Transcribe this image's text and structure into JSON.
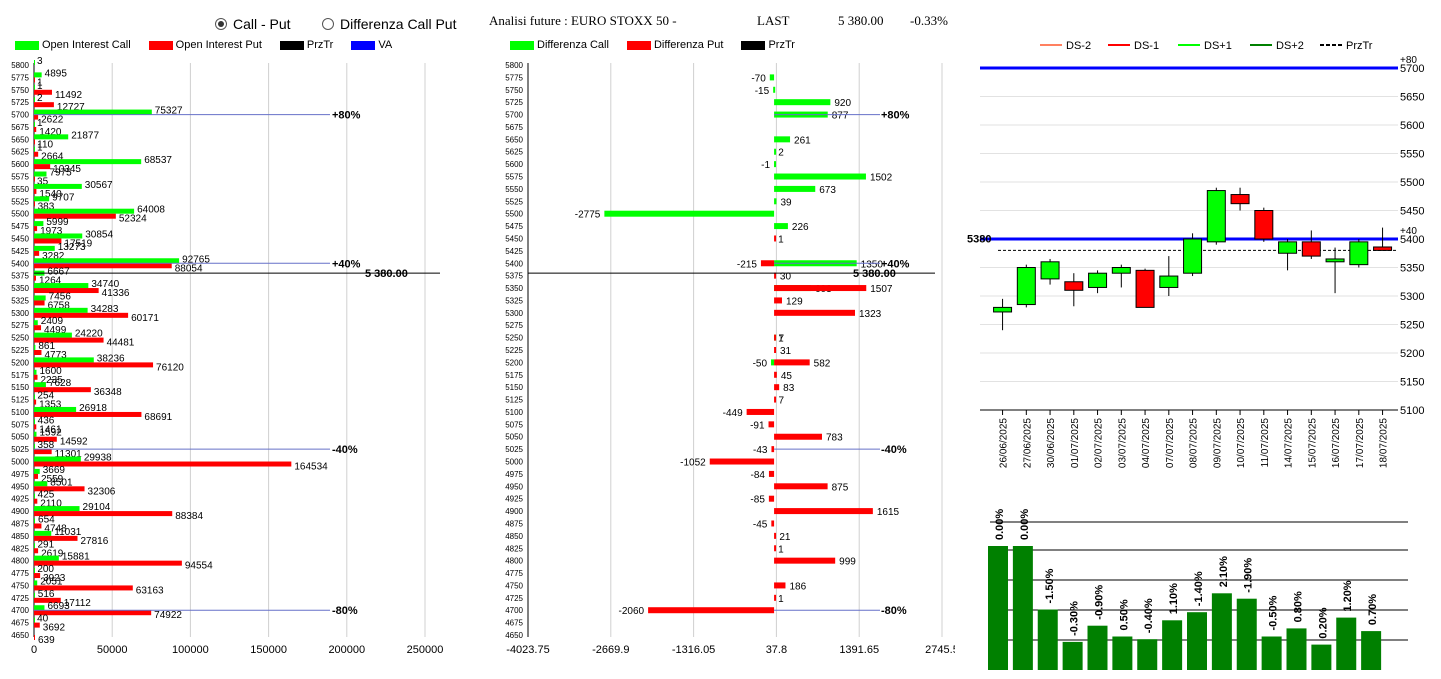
{
  "options": {
    "call_put": "Call - Put",
    "diff_call_put": "Differenza Call Put",
    "selected": "call_put"
  },
  "header": {
    "title": "Analisi future : EURO STOXX 50 -",
    "last_label": "LAST",
    "last_value": "5 380.00",
    "change": "-0.33%"
  },
  "colors": {
    "call": "#00ff00",
    "put": "#ff0000",
    "prztr": "#000000",
    "va": "#0000ff",
    "dsm2": "#ff8060",
    "dsm1": "#ff0000",
    "dsp1": "#00ff00",
    "dsp2": "#008000",
    "bar_green": "#008000"
  },
  "chart_data": [
    {
      "type": "bar",
      "orientation": "horizontal",
      "legend": [
        "Open Interest Call",
        "Open Interest Put",
        "PrzTr",
        "VA"
      ],
      "strikes": [
        5800,
        5775,
        5750,
        5725,
        5700,
        5675,
        5650,
        5625,
        5600,
        5575,
        5550,
        5525,
        5500,
        5475,
        5450,
        5425,
        5400,
        5375,
        5350,
        5325,
        5300,
        5275,
        5250,
        5225,
        5200,
        5175,
        5150,
        5125,
        5100,
        5075,
        5050,
        5025,
        5000,
        4975,
        4950,
        4925,
        4900,
        4875,
        4850,
        4825,
        4800,
        4775,
        4750,
        4725,
        4700,
        4675,
        4650
      ],
      "call_oi": [
        3,
        4895,
        1,
        2,
        75327,
        1,
        21877,
        1,
        68537,
        7975,
        30567,
        9707,
        64008,
        5999,
        30854,
        13273,
        92765,
        6667,
        34740,
        7456,
        34283,
        2409,
        24220,
        861,
        38236,
        1600,
        7628,
        254,
        26918,
        436,
        1592,
        358,
        29938,
        3669,
        8501,
        425,
        29104,
        654,
        11031,
        291,
        15881,
        200,
        2051,
        516,
        6693,
        40,
        0
      ],
      "put_oi": [
        0,
        1,
        11492,
        12727,
        2622,
        1420,
        110,
        2664,
        10345,
        35,
        1540,
        383,
        52324,
        1973,
        17519,
        3282,
        88054,
        1264,
        41336,
        6758,
        60171,
        4499,
        44481,
        4773,
        76120,
        2235,
        36348,
        1353,
        68691,
        1461,
        14592,
        11301,
        164534,
        2559,
        32306,
        2110,
        88384,
        4748,
        27816,
        2619,
        94554,
        3923,
        63163,
        17112,
        74922,
        3692,
        639
      ],
      "xticks": [
        "0",
        "50000",
        "100000",
        "150000",
        "200000",
        "250000"
      ],
      "xlim": [
        0,
        250000
      ],
      "markers": [
        {
          "strike": 5700,
          "label": "+80%"
        },
        {
          "strike": 5400,
          "label": "+40%"
        },
        {
          "strike": 5025,
          "label": "-40%"
        },
        {
          "strike": 4700,
          "label": "-80%"
        }
      ],
      "prztr_label": "5 380.00"
    },
    {
      "type": "bar",
      "orientation": "horizontal",
      "legend": [
        "Differenza Call",
        "Differenza Put",
        "PrzTr"
      ],
      "strikes": [
        5800,
        5775,
        5750,
        5725,
        5700,
        5675,
        5650,
        5625,
        5600,
        5575,
        5550,
        5525,
        5500,
        5475,
        5450,
        5425,
        5400,
        5375,
        5350,
        5325,
        5300,
        5275,
        5250,
        5225,
        5200,
        5175,
        5150,
        5125,
        5100,
        5075,
        5050,
        5025,
        5000,
        4975,
        4950,
        4925,
        4900,
        4875,
        4850,
        4825,
        4800,
        4775,
        4750,
        4725,
        4700,
        4675,
        4650
      ],
      "diff_call": [
        0,
        -70,
        -15,
        920,
        877,
        0,
        261,
        2,
        -1,
        1502,
        673,
        39,
        -2775,
        226,
        0,
        0,
        1350,
        0,
        603,
        0,
        0,
        0,
        1,
        0,
        -50,
        0,
        0,
        0,
        0,
        0,
        0,
        0,
        0,
        0,
        0,
        0,
        0,
        0,
        0,
        0,
        0,
        0,
        0,
        0,
        0,
        0,
        0
      ],
      "diff_put": [
        0,
        0,
        0,
        0,
        0,
        0,
        0,
        0,
        0,
        0,
        0,
        0,
        0,
        0,
        1,
        0,
        -215,
        30,
        1507,
        129,
        1323,
        0,
        7,
        31,
        582,
        45,
        83,
        7,
        -449,
        -91,
        783,
        -43,
        -1052,
        -84,
        875,
        -85,
        1615,
        -45,
        21,
        1,
        999,
        0,
        186,
        1,
        -2060,
        0,
        0
      ],
      "xticks": [
        "-4023.75",
        "-2669.9",
        "-1316.05",
        "37.8",
        "1391.65",
        "2745.5"
      ],
      "xlim": [
        -4023.75,
        2745.5
      ],
      "markers": [
        {
          "strike": 5700,
          "label": "+80%"
        },
        {
          "strike": 5400,
          "label": "+40%"
        },
        {
          "strike": 5025,
          "label": "-40%"
        },
        {
          "strike": 4700,
          "label": "-80%"
        }
      ],
      "prztr_label": "5 380.00"
    },
    {
      "type": "candlestick",
      "legend": [
        "DS-2",
        "DS-1",
        "DS+1",
        "DS+2",
        "PrzTr"
      ],
      "dates": [
        "26/06/2025",
        "27/06/2025",
        "30/06/2025",
        "01/07/2025",
        "02/07/2025",
        "03/07/2025",
        "04/07/2025",
        "07/07/2025",
        "08/07/2025",
        "09/07/2025",
        "10/07/2025",
        "11/07/2025",
        "14/07/2025",
        "15/07/2025",
        "16/07/2025",
        "17/07/2025",
        "18/07/2025"
      ],
      "candles": [
        {
          "o": 5272,
          "h": 5295,
          "l": 5240,
          "c": 5280
        },
        {
          "o": 5285,
          "h": 5355,
          "l": 5280,
          "c": 5350
        },
        {
          "o": 5330,
          "h": 5365,
          "l": 5320,
          "c": 5360
        },
        {
          "o": 5325,
          "h": 5340,
          "l": 5282,
          "c": 5310
        },
        {
          "o": 5315,
          "h": 5345,
          "l": 5305,
          "c": 5340
        },
        {
          "o": 5340,
          "h": 5355,
          "l": 5315,
          "c": 5350
        },
        {
          "o": 5345,
          "h": 5348,
          "l": 5280,
          "c": 5280
        },
        {
          "o": 5315,
          "h": 5370,
          "l": 5300,
          "c": 5335
        },
        {
          "o": 5340,
          "h": 5410,
          "l": 5335,
          "c": 5400
        },
        {
          "o": 5395,
          "h": 5490,
          "l": 5390,
          "c": 5485
        },
        {
          "o": 5478,
          "h": 5490,
          "l": 5450,
          "c": 5462
        },
        {
          "o": 5450,
          "h": 5455,
          "l": 5395,
          "c": 5400
        },
        {
          "o": 5375,
          "h": 5400,
          "l": 5345,
          "c": 5395
        },
        {
          "o": 5395,
          "h": 5415,
          "l": 5365,
          "c": 5370
        },
        {
          "o": 5360,
          "h": 5385,
          "l": 5305,
          "c": 5365
        },
        {
          "o": 5355,
          "h": 5400,
          "l": 5350,
          "c": 5395
        },
        {
          "o": 5386,
          "h": 5420,
          "l": 5380,
          "c": 5380
        }
      ],
      "ylim": [
        5100,
        5700
      ],
      "yticks": [
        "5700",
        "5650",
        "5600",
        "5550",
        "5500",
        "5450",
        "5400",
        "5350",
        "5300",
        "5250",
        "5200",
        "5150",
        "5100"
      ],
      "levels": [
        {
          "value": 5700,
          "label": "+80"
        },
        {
          "value": 5400,
          "label": "+40"
        }
      ],
      "prztr": 5380,
      "prztr_label": "5380"
    },
    {
      "type": "bar",
      "labels": [
        "0.00%",
        "0.00%",
        "-1.50%",
        "-0.30%",
        "-0.90%",
        "0.50%",
        "-0.40%",
        "1.10%",
        "-1.40%",
        "2.10%",
        "-1.90%",
        "-0.50%",
        "0.80%",
        "0.20%",
        "1.20%",
        "0.70%"
      ],
      "values": [
        0.0,
        0.0,
        -1.5,
        -0.3,
        -0.9,
        0.5,
        -0.4,
        1.1,
        -1.4,
        2.1,
        -1.9,
        -0.5,
        0.8,
        0.2,
        1.2,
        0.7
      ]
    }
  ]
}
